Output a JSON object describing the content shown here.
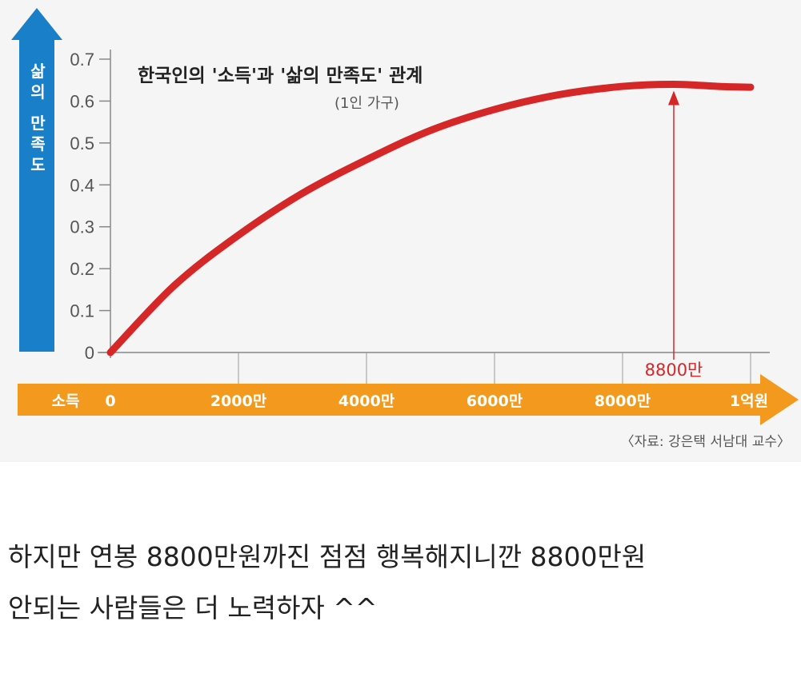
{
  "chart_data": {
    "type": "line",
    "title": "한국인의 '소득'과 '삶의 만족도' 관계",
    "subtitle": "(1인 가구)",
    "ylabel": "삶의 만족도",
    "xlabel": "소득",
    "ylim": [
      0,
      0.7
    ],
    "yticks": [
      "0",
      "0.1",
      "0.2",
      "0.3",
      "0.4",
      "0.5",
      "0.6",
      "0.7"
    ],
    "xtick_labels": [
      "0",
      "2000만",
      "4000만",
      "6000만",
      "8000만",
      "1억원"
    ],
    "xlim": [
      0,
      10000
    ],
    "grid": "vertical",
    "series": [
      {
        "color": "#d62728",
        "x": [
          0,
          1000,
          2000,
          3000,
          4000,
          5000,
          6000,
          7000,
          8000,
          8800,
          9500,
          10000
        ],
        "y": [
          0.0,
          0.16,
          0.28,
          0.38,
          0.46,
          0.53,
          0.58,
          0.615,
          0.635,
          0.64,
          0.635,
          0.633
        ]
      }
    ],
    "annotation": {
      "x": 8800,
      "label": "8800만"
    },
    "source": "〈자료: 강은택 서남대 교수〉"
  },
  "caption": {
    "line1": "하지만 연봉 8800만원까진 점점 행복해지니깐 8800만원",
    "line2": "안되는 사람들은 더 노력하자 ^^"
  }
}
